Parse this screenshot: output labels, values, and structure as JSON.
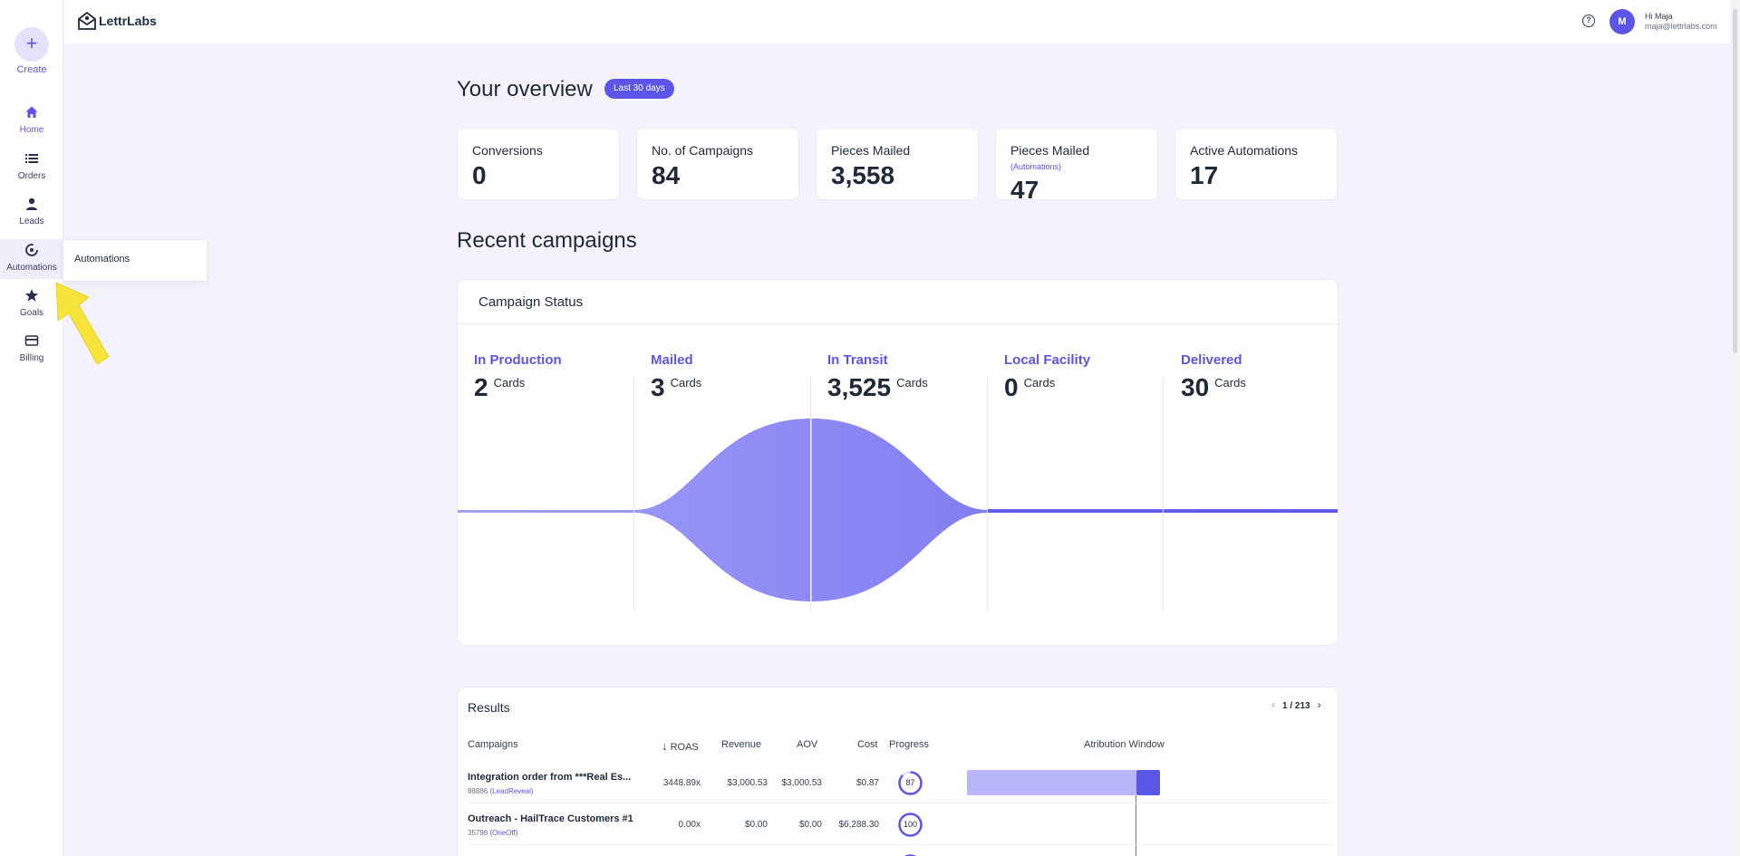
{
  "sidebar": {
    "create_label": "Create",
    "items": [
      {
        "label": "Home",
        "icon": "home-icon"
      },
      {
        "label": "Orders",
        "icon": "list-icon"
      },
      {
        "label": "Leads",
        "icon": "user-icon"
      },
      {
        "label": "Automations",
        "icon": "automation-icon"
      },
      {
        "label": "Goals",
        "icon": "star-icon"
      },
      {
        "label": "Billing",
        "icon": "card-icon"
      }
    ],
    "tooltip": "Automations"
  },
  "header": {
    "brand": "LettrLabs",
    "avatar_initial": "M",
    "greeting": "Hi Maja",
    "email": "maja@lettrlabs.com"
  },
  "overview": {
    "title": "Your overview",
    "period_badge": "Last 30 days",
    "stats": [
      {
        "title": "Conversions",
        "note": "",
        "value": "0"
      },
      {
        "title": "No. of Campaigns",
        "note": "",
        "value": "84"
      },
      {
        "title": "Pieces Mailed",
        "note": "",
        "value": "3,558"
      },
      {
        "title": "Pieces Mailed",
        "note": "(Automations)",
        "value": "47"
      },
      {
        "title": "Active Automations",
        "note": "",
        "value": "17"
      }
    ]
  },
  "recent": {
    "title": "Recent campaigns",
    "status_card_title": "Campaign Status",
    "unit": "Cards",
    "stages": [
      {
        "name": "In Production",
        "count": "2"
      },
      {
        "name": "Mailed",
        "count": "3"
      },
      {
        "name": "In Transit",
        "count": "3,525"
      },
      {
        "name": "Local Facility",
        "count": "0"
      },
      {
        "name": "Delivered",
        "count": "30"
      }
    ]
  },
  "results": {
    "title": "Results",
    "pager": "1 / 213",
    "columns": {
      "campaigns": "Campaigns",
      "roas": "ROAS",
      "revenue": "Revenue",
      "aov": "AOV",
      "cost": "Cost",
      "progress": "Progress",
      "attribution": "Atribution Window"
    },
    "rows": [
      {
        "name": "Integration order from ***Real Es...",
        "id": "88886",
        "type": "(LeadReveal)",
        "roas": "3448.89x",
        "revenue": "$3,000.53",
        "aov": "$3,000.53",
        "cost": "$0.87",
        "progress": "87"
      },
      {
        "name": "Outreach - HailTrace Customers #1",
        "id": "35798",
        "type": "(OneOff)",
        "roas": "0.00x",
        "revenue": "$0.00",
        "aov": "$0.00",
        "cost": "$6,288.30",
        "progress": "100"
      }
    ]
  },
  "colors": {
    "accent": "#5b55e8",
    "accent_light": "#b8b6f7",
    "background": "#f4f3fd"
  }
}
